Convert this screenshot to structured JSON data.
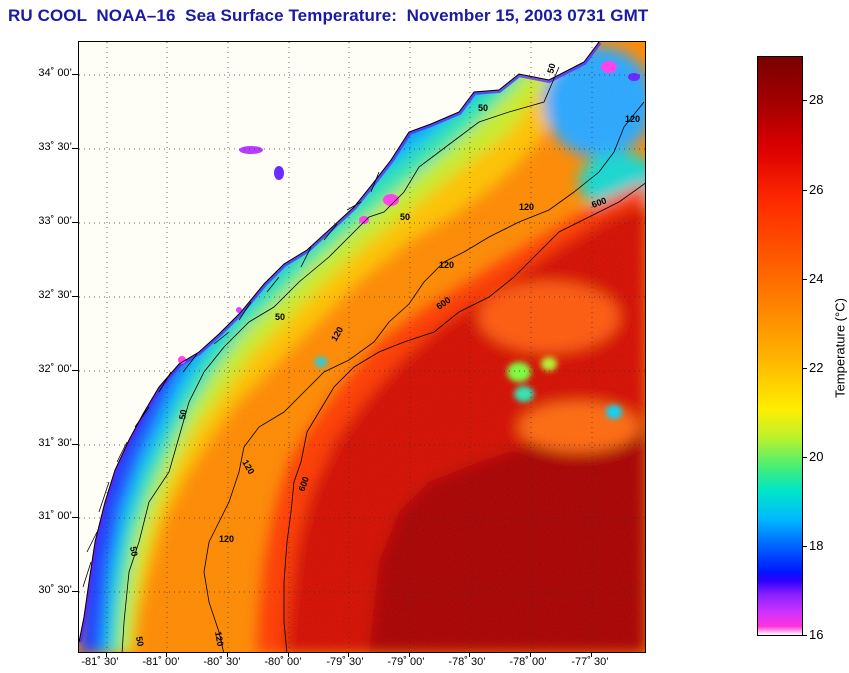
{
  "title": "RU COOL  NOAA–16  Sea Surface Temperature:  November 15, 2003 0731 GMT",
  "map": {
    "lat_labels": [
      "34˚ 00’",
      "33˚ 30’",
      "33˚ 00’",
      "32˚ 30’",
      "32˚ 00’",
      "31˚ 30’",
      "31˚ 00’",
      "30˚ 30’"
    ],
    "lon_labels": [
      "-81˚ 30’",
      "-81˚ 00’",
      "-80˚ 30’",
      "-80˚ 00’",
      "-79˚ 30’",
      "-79˚ 00’",
      "-78˚ 30’",
      "-78˚ 00’",
      "-77˚ 30’"
    ],
    "contour_labels": [
      "50",
      "50",
      "120",
      "120",
      "50",
      "120",
      "600",
      "50",
      "120",
      "600",
      "50",
      "120",
      "600",
      "50",
      "120",
      "50",
      "120"
    ],
    "land_color": "#fffef6",
    "grid_color": "#333333"
  },
  "colorbar": {
    "title": "Temperature (°C)",
    "tick_labels": [
      "28",
      "26",
      "24",
      "22",
      "20",
      "18",
      "16"
    ],
    "min": 16,
    "max": 29
  }
}
